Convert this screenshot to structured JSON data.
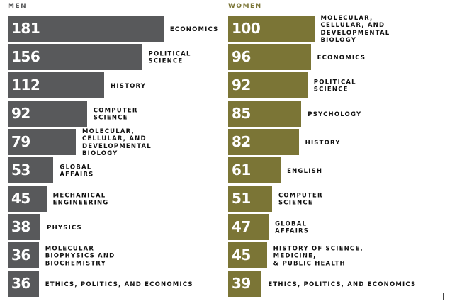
{
  "chart_data": [
    {
      "type": "bar",
      "orientation": "horizontal",
      "title": "MEN",
      "color": "#58595b",
      "categories": [
        "ECONOMICS",
        "POLITICAL\nSCIENCE",
        "HISTORY",
        "COMPUTER\nSCIENCE",
        "MOLECULAR,\nCELLULAR, AND\nDEVELOPMENTAL\nBIOLOGY",
        "GLOBAL\nAFFAIRS",
        "MECHANICAL\nENGINEERING",
        "PHYSICS",
        "MOLECULAR\nBIOPHYSICS AND\nBIOCHEMISTRY",
        "ETHICS, POLITICS, AND ECONOMICS"
      ],
      "values": [
        181,
        156,
        112,
        92,
        79,
        53,
        45,
        38,
        36,
        36
      ]
    },
    {
      "type": "bar",
      "orientation": "horizontal",
      "title": "WOMEN",
      "color": "#7b7536",
      "categories": [
        "MOLECULAR,\nCELLULAR, AND\nDEVELOPMENTAL\nBIOLOGY",
        "ECONOMICS",
        "POLITICAL\nSCIENCE",
        "PSYCHOLOGY",
        "HISTORY",
        "ENGLISH",
        "COMPUTER\nSCIENCE",
        "GLOBAL\nAFFAIRS",
        "HISTORY OF SCIENCE,\nMEDICINE,\n& PUBLIC HEALTH",
        "ETHICS, POLITICS, AND ECONOMICS"
      ],
      "values": [
        100,
        96,
        92,
        85,
        82,
        61,
        51,
        47,
        45,
        39
      ]
    }
  ]
}
